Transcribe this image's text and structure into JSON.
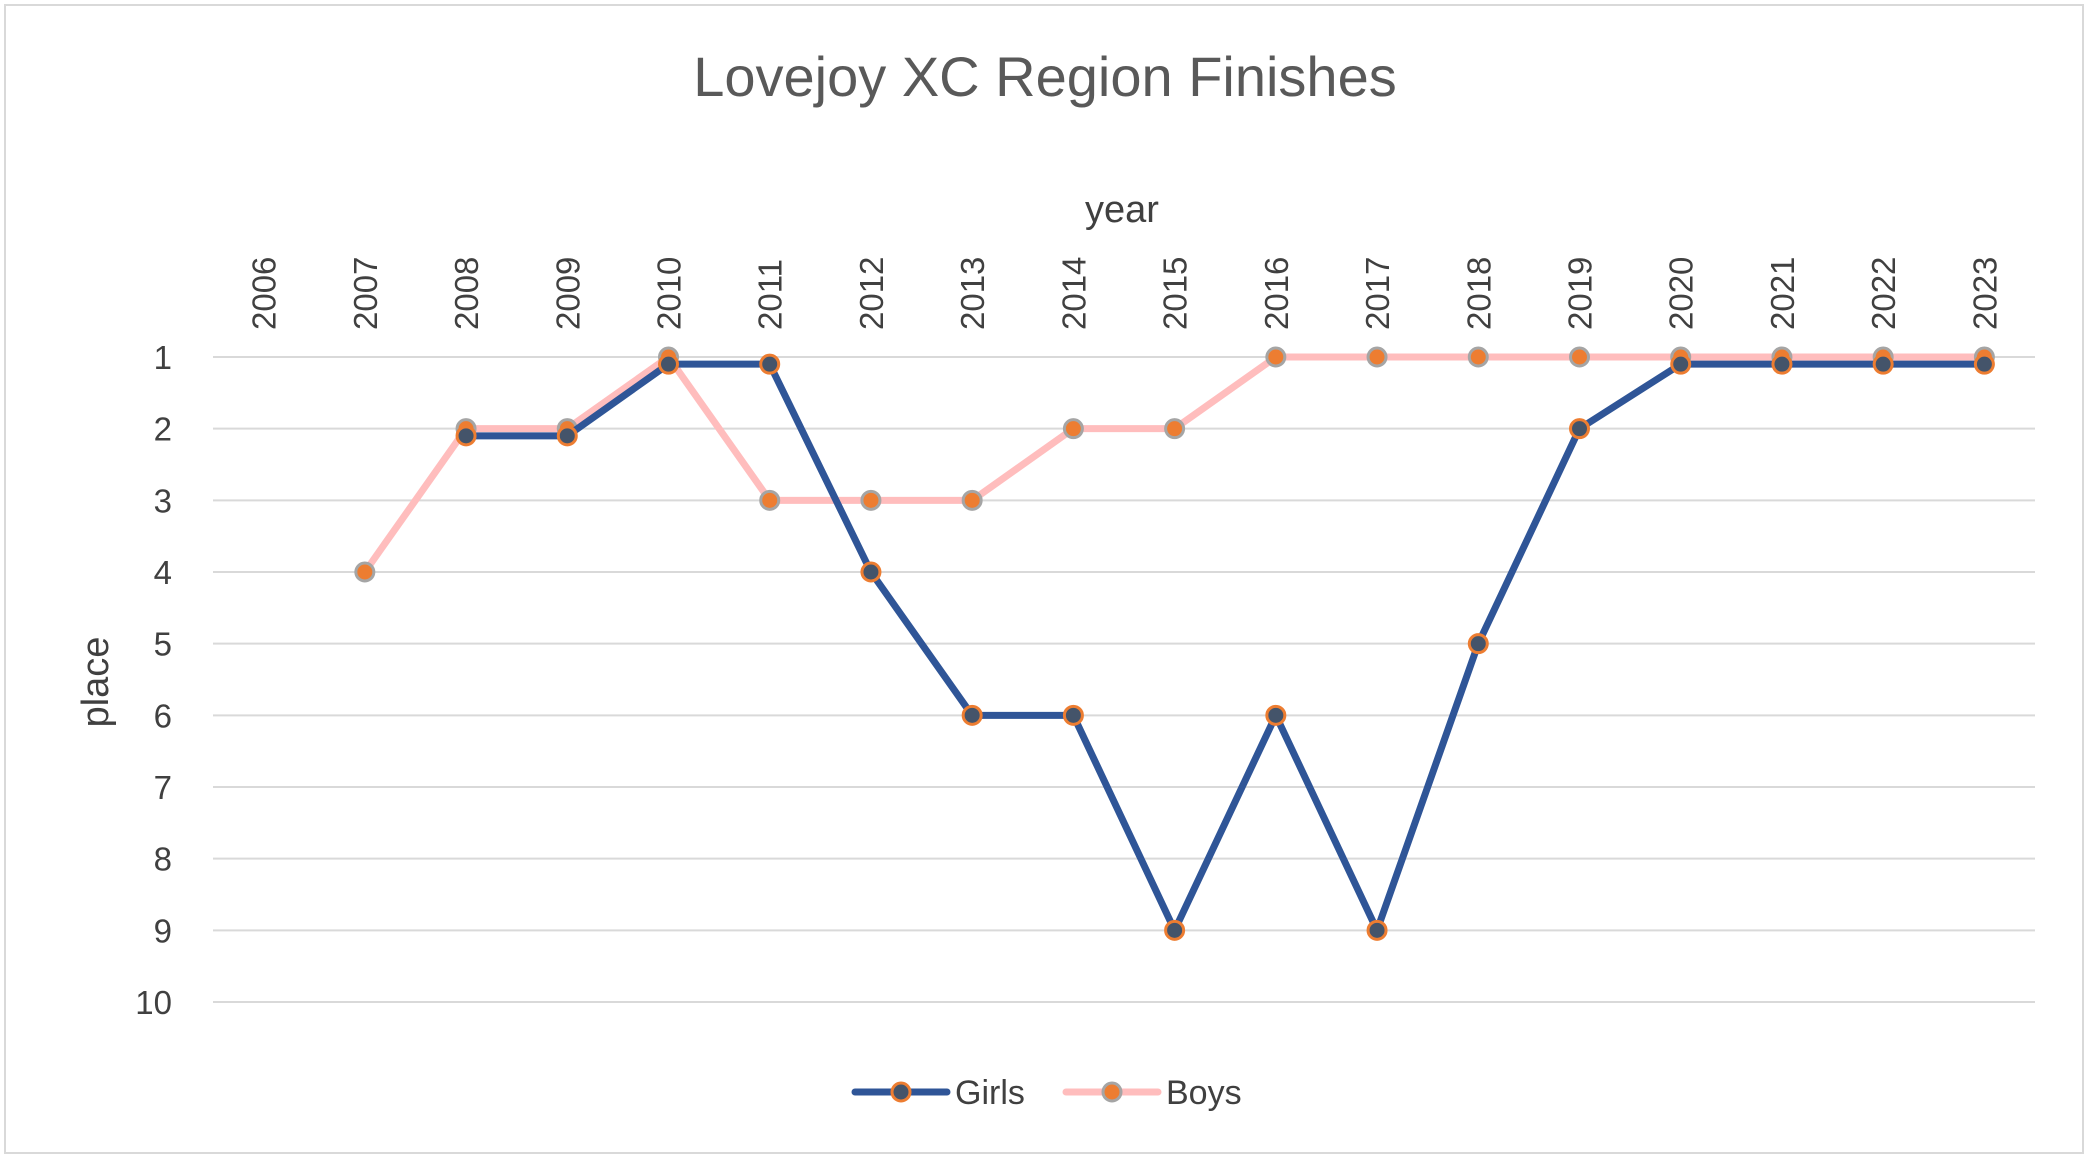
{
  "chart_data": {
    "type": "line",
    "title": "Lovejoy XC Region Finishes",
    "xlabel": "year",
    "ylabel": "place",
    "categories": [
      "2006",
      "2007",
      "2008",
      "2009",
      "2010",
      "2011",
      "2012",
      "2013",
      "2014",
      "2015",
      "2016",
      "2017",
      "2018",
      "2019",
      "2020",
      "2021",
      "2022",
      "2023"
    ],
    "ylim": [
      1,
      10
    ],
    "y_reversed": true,
    "yticks": [
      "1",
      "2",
      "3",
      "4",
      "5",
      "6",
      "7",
      "8",
      "9",
      "10"
    ],
    "x_axis_position": "top",
    "grid": true,
    "legend_position": "bottom",
    "series": [
      {
        "name": "Girls",
        "values": [
          null,
          null,
          2.1,
          2.1,
          1.1,
          1.1,
          4,
          6,
          6,
          9,
          6,
          9,
          5,
          2,
          1.1,
          1.1,
          1.1,
          1.1
        ],
        "color": "#2f5597",
        "marker_fill": "#44546a",
        "marker_edge": "#ed7d31"
      },
      {
        "name": "Boys",
        "values": [
          null,
          4,
          2,
          2,
          1,
          3,
          3,
          3,
          2,
          2,
          1,
          1,
          1,
          1,
          1,
          1,
          1,
          1
        ],
        "color": "#ffbdbd",
        "marker_fill": "#ed7d31",
        "marker_edge": "#a5a5a5"
      }
    ]
  }
}
